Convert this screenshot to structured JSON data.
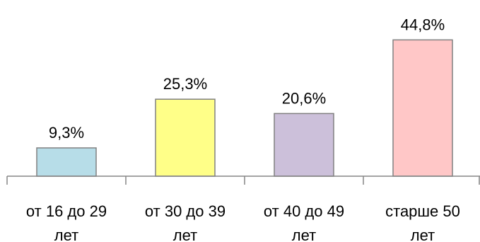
{
  "chart_data": {
    "type": "bar",
    "categories": [
      [
        "от 16 до 29",
        "лет"
      ],
      [
        "от 30 до 39",
        "лет"
      ],
      [
        "от 40 до 49",
        "лет"
      ],
      [
        "старше 50",
        "лет"
      ]
    ],
    "values": [
      9.3,
      25.3,
      20.6,
      44.8
    ],
    "value_labels": [
      "9,3%",
      "25,3%",
      "20,6%",
      "44,8%"
    ],
    "bar_colors": [
      "#b7dde8",
      "#ffff88",
      "#ccc0da",
      "#ffc7c7"
    ],
    "bar_stroke": "#808080",
    "axis_color": "#868686",
    "ylim": [
      0,
      50
    ],
    "grid": false,
    "legend": "none",
    "title": "",
    "xlabel": "",
    "ylabel": ""
  }
}
